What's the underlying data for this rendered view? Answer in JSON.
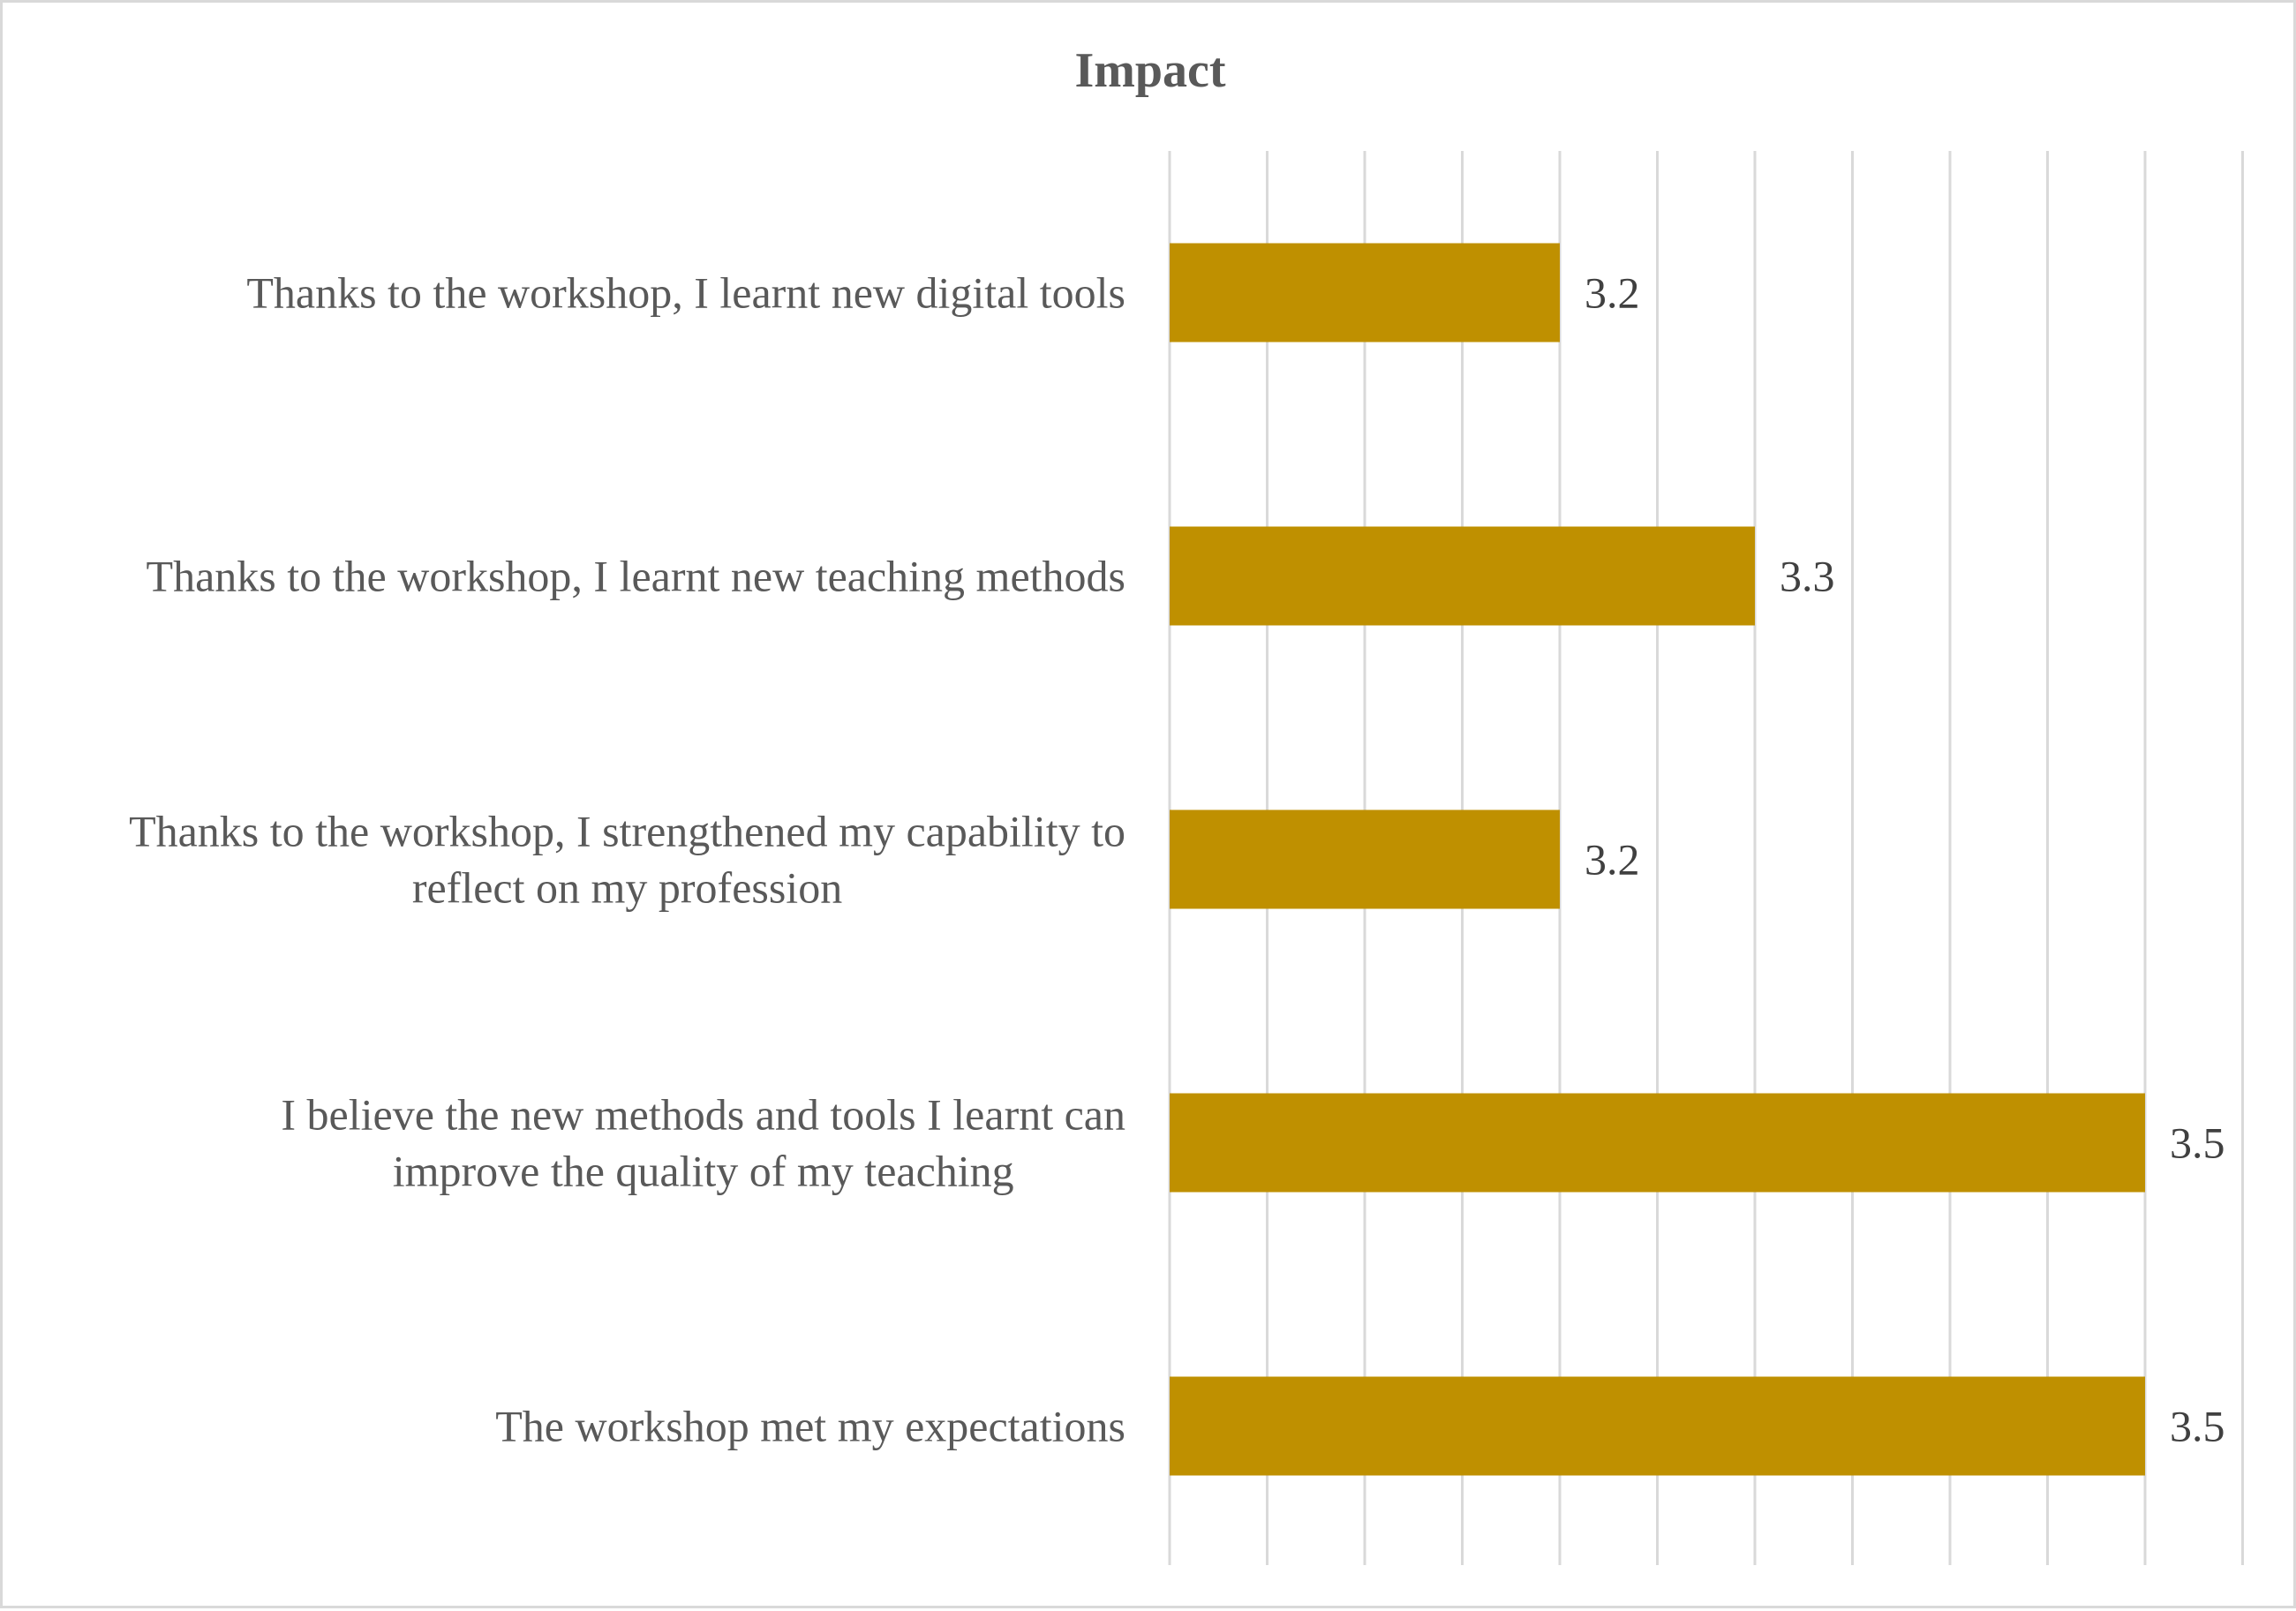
{
  "chart_data": {
    "type": "bar",
    "orientation": "horizontal",
    "title": "Impact",
    "categories": [
      "Thanks to the workshop, I learnt new digital tools",
      "Thanks to the workshop, I learnt new teaching methods",
      "Thanks to the workshop, I strengthened my capability to reflect on my profession",
      "I believe the new methods and tools I learnt can improve the quality of my teaching",
      "The workshop met my expectations"
    ],
    "category_lines": [
      [
        "Thanks to the workshop, I learnt new digital tools"
      ],
      [
        "Thanks to the workshop, I learnt new teaching methods"
      ],
      [
        "Thanks to the workshop, I strengthened my capability to",
        "reflect on my profession"
      ],
      [
        "I believe the new methods and tools I learnt can",
        "improve the quality of my teaching"
      ],
      [
        "The workshop met my expectations"
      ]
    ],
    "values": [
      3.2,
      3.3,
      3.2,
      3.5,
      3.5
    ],
    "data_labels": [
      "3.2",
      "3.3",
      "3.2",
      "3.5",
      "3.5"
    ],
    "xlim": [
      3.0,
      3.5
    ],
    "x_gridline_step": 0.05,
    "xlabel": "",
    "ylabel": "",
    "grid": true,
    "legend": "none",
    "bar_color": "#BF9000"
  }
}
